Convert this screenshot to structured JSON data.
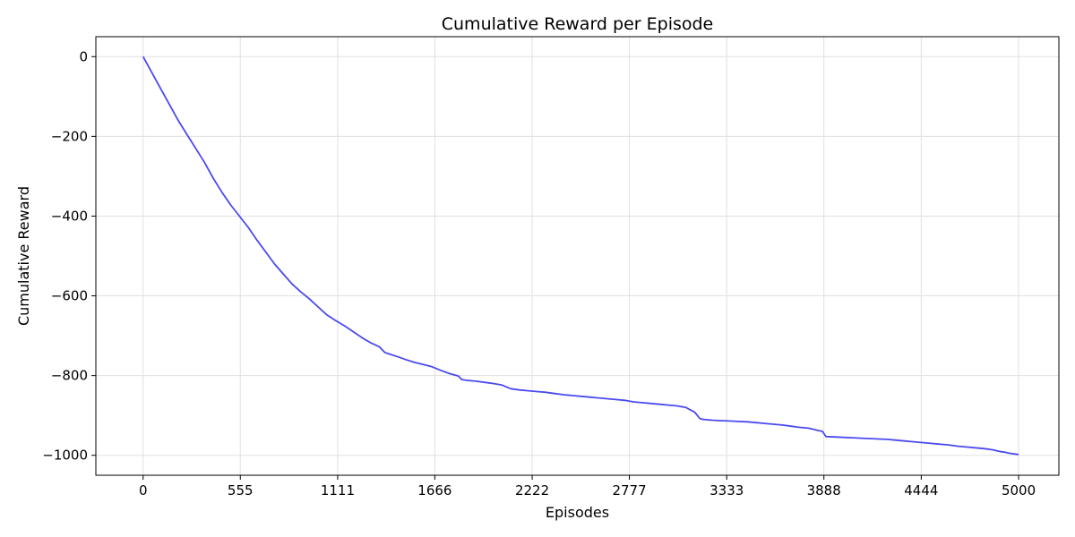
{
  "chart_data": {
    "type": "line",
    "title": "Cumulative Reward per Episode",
    "xlabel": "Episodes",
    "ylabel": "Cumulative Reward",
    "xlim": [
      -270,
      5230
    ],
    "ylim": [
      -1050,
      50
    ],
    "xticks": [
      0,
      555,
      1111,
      1666,
      2222,
      2777,
      3333,
      3888,
      4444,
      5000
    ],
    "yticks": [
      0,
      -200,
      -400,
      -600,
      -800,
      -1000
    ],
    "ytick_labels": [
      "0",
      "−200",
      "−400",
      "−600",
      "−800",
      "−1000"
    ],
    "grid": true,
    "line_color": "#4a4af0",
    "series": [
      {
        "x": [
          0,
          50,
          100,
          150,
          200,
          250,
          300,
          350,
          400,
          450,
          500,
          550,
          600,
          650,
          700,
          750,
          800,
          850,
          900,
          950,
          1000,
          1050,
          1100,
          1150,
          1200,
          1250,
          1300,
          1350,
          1380,
          1400,
          1450,
          1500,
          1550,
          1600,
          1650,
          1700,
          1750,
          1800,
          1820,
          1850,
          1900,
          1950,
          2000,
          2050,
          2100,
          2150,
          2200,
          2250,
          2300,
          2350,
          2400,
          2450,
          2500,
          2550,
          2600,
          2650,
          2700,
          2750,
          2800,
          2850,
          2900,
          2950,
          3000,
          3050,
          3100,
          3150,
          3180,
          3200,
          3250,
          3300,
          3350,
          3400,
          3450,
          3500,
          3550,
          3600,
          3650,
          3700,
          3750,
          3800,
          3850,
          3880,
          3900,
          3950,
          4000,
          4050,
          4100,
          4150,
          4200,
          4250,
          4300,
          4350,
          4400,
          4450,
          4500,
          4550,
          4600,
          4650,
          4700,
          4750,
          4800,
          4850,
          4900,
          4920,
          4950,
          5000
        ],
        "y": [
          0,
          -40,
          -80,
          -120,
          -160,
          -195,
          -230,
          -265,
          -305,
          -340,
          -372,
          -400,
          -428,
          -460,
          -490,
          -520,
          -545,
          -570,
          -590,
          -608,
          -628,
          -648,
          -662,
          -675,
          -690,
          -705,
          -718,
          -728,
          -742,
          -745,
          -752,
          -760,
          -767,
          -772,
          -778,
          -787,
          -795,
          -801,
          -810,
          -812,
          -814,
          -817,
          -820,
          -824,
          -833,
          -836,
          -838,
          -840,
          -842,
          -845,
          -848,
          -850,
          -852,
          -854,
          -856,
          -858,
          -860,
          -862,
          -866,
          -868,
          -870,
          -872,
          -874,
          -876,
          -880,
          -892,
          -908,
          -910,
          -912,
          -913,
          -914,
          -915,
          -916,
          -918,
          -920,
          -922,
          -924,
          -927,
          -930,
          -932,
          -937,
          -940,
          -953,
          -954,
          -955,
          -956,
          -957,
          -958,
          -959,
          -960,
          -962,
          -964,
          -966,
          -968,
          -970,
          -972,
          -974,
          -977,
          -979,
          -981,
          -983,
          -986,
          -991,
          -992,
          -995,
          -998
        ]
      }
    ]
  }
}
